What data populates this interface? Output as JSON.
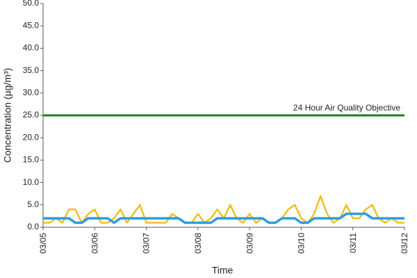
{
  "chart_data": {
    "type": "line",
    "x_label": "Time",
    "y_label": "Concentration (µg/m³)",
    "x": [
      0,
      0.125,
      0.25,
      0.375,
      0.5,
      0.625,
      0.75,
      0.875,
      1,
      1.125,
      1.25,
      1.375,
      1.5,
      1.625,
      1.75,
      1.875,
      2,
      2.125,
      2.25,
      2.375,
      2.5,
      2.625,
      2.75,
      2.875,
      3,
      3.125,
      3.25,
      3.375,
      3.5,
      3.625,
      3.75,
      3.875,
      4,
      4.125,
      4.25,
      4.375,
      4.5,
      4.625,
      4.75,
      4.875,
      5,
      5.125,
      5.25,
      5.375,
      5.5,
      5.625,
      5.75,
      5.875,
      6,
      6.125,
      6.25,
      6.375,
      6.5,
      6.625,
      6.75,
      6.875,
      7
    ],
    "series": [
      {
        "color": "#f0c020",
        "values": [
          1,
          1,
          2,
          1,
          4,
          4,
          1,
          3,
          4,
          1,
          1,
          2,
          4,
          1,
          3,
          5,
          1,
          1,
          1,
          1,
          3,
          2,
          1,
          1,
          3,
          1,
          2,
          4,
          2,
          5,
          2,
          1,
          3,
          1,
          2,
          1,
          1,
          2,
          4,
          5,
          2,
          1,
          3,
          7,
          3,
          1,
          2,
          5,
          2,
          2,
          4,
          5,
          2,
          1,
          2,
          1,
          1
        ]
      },
      {
        "color": "#2a9de0",
        "values": [
          2,
          2,
          2,
          2,
          2,
          1,
          1,
          2,
          2,
          2,
          2,
          1,
          2,
          2,
          2,
          2,
          2,
          2,
          2,
          2,
          2,
          2,
          1,
          1,
          1,
          1,
          1,
          2,
          2,
          2,
          2,
          2,
          2,
          2,
          2,
          1,
          1,
          2,
          2,
          2,
          1,
          1,
          2,
          2,
          2,
          2,
          2,
          3,
          3,
          3,
          3,
          2,
          2,
          2,
          2,
          2,
          2
        ]
      }
    ],
    "reference_line": {
      "value": 25,
      "label": "24 Hour Air Quality Objective",
      "color": "#1e7d1e"
    },
    "xlim": [
      0,
      7
    ],
    "xticks": [
      {
        "value": 0,
        "label": "03/05"
      },
      {
        "value": 1,
        "label": "03/06"
      },
      {
        "value": 2,
        "label": "03/07"
      },
      {
        "value": 3,
        "label": "03/08"
      },
      {
        "value": 4,
        "label": "03/09"
      },
      {
        "value": 5,
        "label": "03/10"
      },
      {
        "value": 6,
        "label": "03/11"
      },
      {
        "value": 7,
        "label": "03/12"
      }
    ],
    "ylim": [
      0,
      50
    ],
    "yticks": [
      {
        "value": 0,
        "label": "0.0"
      },
      {
        "value": 5,
        "label": "5.0"
      },
      {
        "value": 10,
        "label": "10.0"
      },
      {
        "value": 15,
        "label": "15.0"
      },
      {
        "value": 20,
        "label": "20.0"
      },
      {
        "value": 25,
        "label": "25.0"
      },
      {
        "value": 30,
        "label": "30.0"
      },
      {
        "value": 35,
        "label": "35.0"
      },
      {
        "value": 40,
        "label": "40.0"
      },
      {
        "value": 45,
        "label": "45.0"
      },
      {
        "value": 50,
        "label": "50.0"
      }
    ]
  }
}
